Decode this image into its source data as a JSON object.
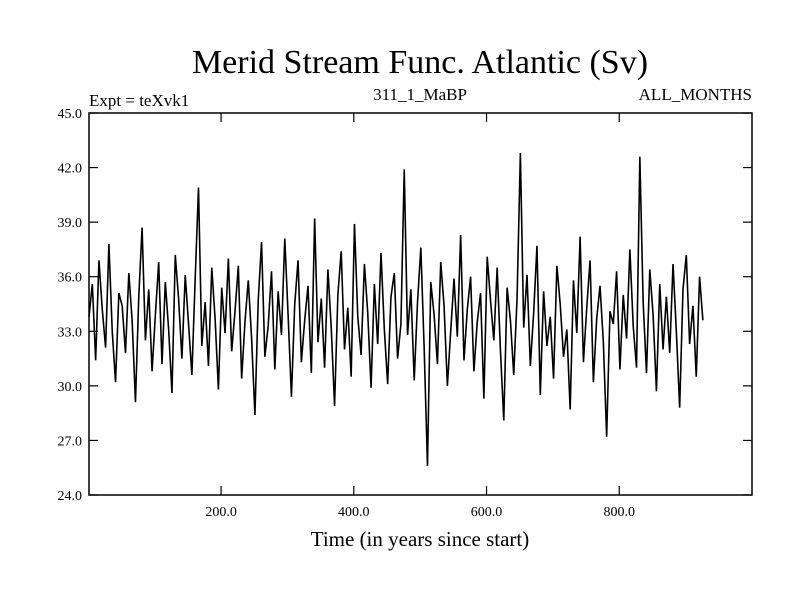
{
  "chart_data": {
    "type": "line",
    "title": "Merid Stream Func. Atlantic (Sv)",
    "subtitle_left": "Expt = teXvk1",
    "subtitle_center": "311_1_MaBP",
    "subtitle_right": "ALL_MONTHS",
    "xlabel": "Time (in years since start)",
    "ylabel": "",
    "xlim": [
      1,
      1000
    ],
    "ylim": [
      24.0,
      45.0
    ],
    "xticks": [
      200,
      400,
      600,
      800
    ],
    "xtick_labels": [
      "200.0",
      "400.0",
      "600.0",
      "800.0"
    ],
    "yticks": [
      24,
      27,
      30,
      33,
      36,
      39,
      42,
      45
    ],
    "ytick_labels": [
      "24.0",
      "27.0",
      "30.0",
      "33.0",
      "36.0",
      "39.0",
      "42.0",
      "45.0"
    ],
    "grid": false,
    "series": [
      {
        "color": "#000000",
        "x_start": 1,
        "x_step": 5,
        "values": [
          33.8,
          35.6,
          31.4,
          36.9,
          34.2,
          32.1,
          37.8,
          33.0,
          30.2,
          35.1,
          34.4,
          31.8,
          36.2,
          33.6,
          29.1,
          34.9,
          38.7,
          32.5,
          35.3,
          30.8,
          33.9,
          36.8,
          31.2,
          35.7,
          33.1,
          29.6,
          37.2,
          34.8,
          31.5,
          36.1,
          33.4,
          30.6,
          35.9,
          40.9,
          32.2,
          34.6,
          31.1,
          36.5,
          33.7,
          29.8,
          35.4,
          32.9,
          37.0,
          31.9,
          34.1,
          36.6,
          30.4,
          33.5,
          35.8,
          32.6,
          28.4,
          34.7,
          37.9,
          31.6,
          33.3,
          36.3,
          30.9,
          35.2,
          32.8,
          38.1,
          33.9,
          29.4,
          34.5,
          36.9,
          31.3,
          33.6,
          35.5,
          30.7,
          39.2,
          32.4,
          34.8,
          31.0,
          36.4,
          33.2,
          28.9,
          35.0,
          37.4,
          32.0,
          34.3,
          30.5,
          38.9,
          33.8,
          31.7,
          36.7,
          34.0,
          29.9,
          35.6,
          32.3,
          37.3,
          33.1,
          30.1,
          34.9,
          36.2,
          31.5,
          33.4,
          41.9,
          32.8,
          35.3,
          30.3,
          34.6,
          37.6,
          32.1,
          25.6,
          35.7,
          33.9,
          31.2,
          36.8,
          34.4,
          30.0,
          33.0,
          35.9,
          32.7,
          38.3,
          31.4,
          34.2,
          36.0,
          30.8,
          33.5,
          35.1,
          29.3,
          37.1,
          34.7,
          32.5,
          36.5,
          31.9,
          28.1,
          35.4,
          33.6,
          30.6,
          34.8,
          42.8,
          33.2,
          36.1,
          31.1,
          34.0,
          37.7,
          29.5,
          35.2,
          32.2,
          33.8,
          30.4,
          36.6,
          34.5,
          31.6,
          33.1,
          28.7,
          35.8,
          32.9,
          38.2,
          31.3,
          34.3,
          36.9,
          30.2,
          33.7,
          35.5,
          32.4,
          27.2,
          34.1,
          33.4,
          36.3,
          30.9,
          35.0,
          32.6,
          37.5,
          33.3,
          31.0,
          42.6,
          34.6,
          30.7,
          36.4,
          33.9,
          29.7,
          35.6,
          32.0,
          34.9,
          31.8,
          36.7,
          33.0,
          28.8,
          35.3,
          37.2,
          32.3,
          34.4,
          30.5,
          36.0,
          33.6
        ]
      }
    ]
  }
}
